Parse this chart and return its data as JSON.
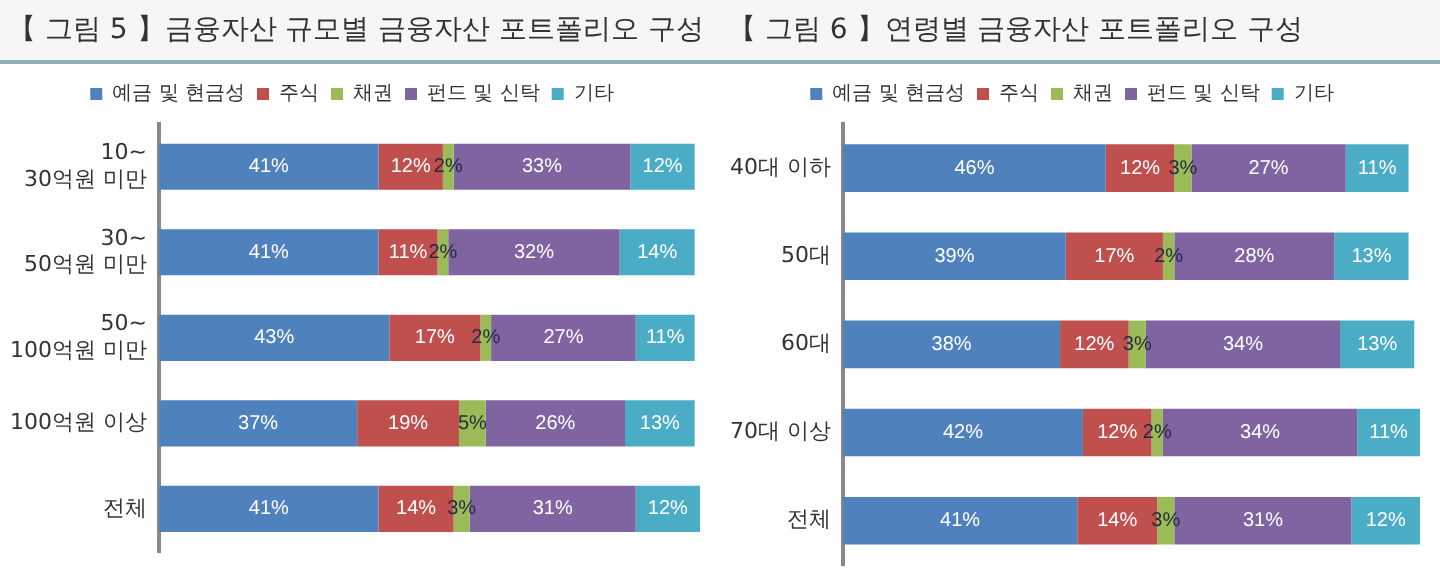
{
  "chart_data": [
    {
      "type": "bar",
      "title": "【 그림 5 】금융자산 규모별 금융자산 포트폴리오 구성",
      "orientation": "horizontal",
      "stacked": true,
      "legend": "top",
      "grid": false,
      "tick_labels": "y",
      "categories": [
        "10~\n30억원 미만",
        "30~\n50억원 미만",
        "50~\n100억원 미만",
        "100억원 이상",
        "전체"
      ],
      "series": [
        {
          "name": "예금 및 현금성",
          "color": "#4f81bd",
          "values": [
            41,
            41,
            43,
            37,
            41
          ],
          "value_labels": [
            "41%",
            "41%",
            "43%",
            "37%",
            "41%"
          ]
        },
        {
          "name": "주식",
          "color": "#c0504d",
          "values": [
            12,
            11,
            17,
            19,
            14
          ],
          "value_labels": [
            "12%",
            "11%",
            "17%",
            "19%",
            "14%"
          ]
        },
        {
          "name": "채권",
          "color": "#9bbb59",
          "values": [
            2,
            2,
            2,
            5,
            3
          ],
          "value_labels": [
            "2%",
            "2%",
            "2%",
            "5%",
            "3%"
          ]
        },
        {
          "name": "펀드 및 신탁",
          "color": "#8064a2",
          "values": [
            33,
            32,
            27,
            26,
            31
          ],
          "value_labels": [
            "33%",
            "32%",
            "27%",
            "26%",
            "31%"
          ]
        },
        {
          "name": "기타",
          "color": "#4bacc6",
          "values": [
            12,
            14,
            11,
            13,
            12
          ],
          "value_labels": [
            "12%",
            "14%",
            "11%",
            "13%",
            "12%"
          ]
        }
      ]
    },
    {
      "type": "bar",
      "title": "【 그림 6 】연령별 금융자산 포트폴리오 구성",
      "orientation": "horizontal",
      "stacked": true,
      "legend": "top",
      "grid": false,
      "tick_labels": "y",
      "categories": [
        "40대 이하",
        "50대",
        "60대",
        "70대 이상",
        "전체"
      ],
      "series": [
        {
          "name": "예금 및 현금성",
          "color": "#4f81bd",
          "values": [
            46,
            39,
            38,
            42,
            41
          ],
          "value_labels": [
            "46%",
            "39%",
            "38%",
            "42%",
            "41%"
          ]
        },
        {
          "name": "주식",
          "color": "#c0504d",
          "values": [
            12,
            17,
            12,
            12,
            14
          ],
          "value_labels": [
            "12%",
            "17%",
            "12%",
            "12%",
            "14%"
          ]
        },
        {
          "name": "채권",
          "color": "#9bbb59",
          "values": [
            3,
            2,
            3,
            2,
            3
          ],
          "value_labels": [
            "3%",
            "2%",
            "3%",
            "2%",
            "3%"
          ]
        },
        {
          "name": "펀드 및 신탁",
          "color": "#8064a2",
          "values": [
            27,
            28,
            34,
            34,
            31
          ],
          "value_labels": [
            "27%",
            "28%",
            "34%",
            "34%",
            "31%"
          ]
        },
        {
          "name": "기타",
          "color": "#4bacc6",
          "values": [
            11,
            13,
            13,
            11,
            12
          ],
          "value_labels": [
            "11%",
            "13%",
            "13%",
            "11%",
            "12%"
          ]
        }
      ]
    }
  ]
}
